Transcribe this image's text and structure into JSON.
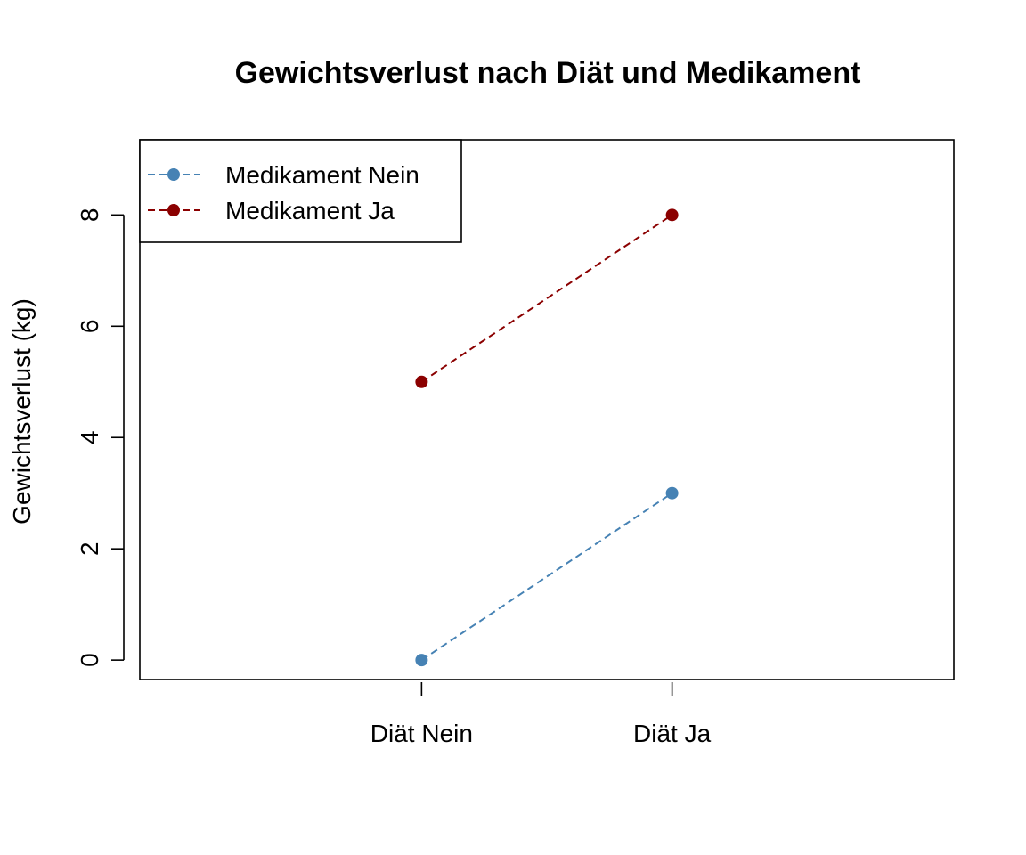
{
  "chart_data": {
    "type": "line",
    "title": "Gewichtsverlust nach Diät und Medikament",
    "xlabel": "",
    "ylabel": "Gewichtsverlust (kg)",
    "categories": [
      "Diät Nein",
      "Diät Ja"
    ],
    "y_ticks": [
      0,
      2,
      4,
      6,
      8
    ],
    "ylim": [
      -0.35,
      9.35
    ],
    "xlim": [
      0,
      3.25
    ],
    "category_positions": [
      1.125,
      2.125
    ],
    "grid": false,
    "legend_position": "top-left",
    "line_style": "dashed",
    "series": [
      {
        "name": "Medikament Nein",
        "values": [
          0,
          3
        ],
        "color": "#4682B4"
      },
      {
        "name": "Medikament Ja",
        "values": [
          5,
          8
        ],
        "color": "#8B0000"
      }
    ]
  }
}
